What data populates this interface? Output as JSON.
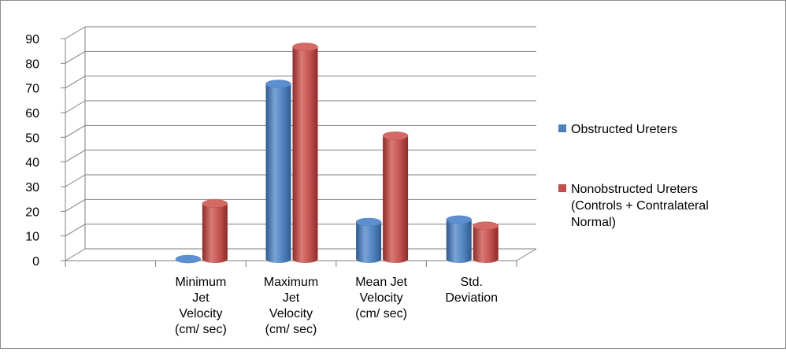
{
  "chart_data": {
    "type": "bar",
    "style": "3d-cylinder",
    "categories": [
      [
        "Minimum",
        "Jet",
        "Velocity",
        "(cm/ sec)"
      ],
      [
        "Maximum",
        "Jet",
        "Velocity",
        "(cm/ sec)"
      ],
      [
        "Mean Jet",
        "Velocity",
        "(cm/ sec)"
      ],
      [
        "Std.",
        "Deviation"
      ]
    ],
    "series": [
      {
        "name": "Obstructed Ureters",
        "color": "#4f81bd",
        "values": [
          0,
          71,
          15,
          16
        ]
      },
      {
        "name_lines": [
          "Nonobstructed Ureters",
          "(Controls + Contralateral",
          "Normal)"
        ],
        "color": "#c0504d",
        "values": [
          22.5,
          86,
          50,
          13.5
        ]
      }
    ],
    "y_ticks": [
      "0",
      "10",
      "20",
      "30",
      "40",
      "50",
      "60",
      "70",
      "80",
      "90"
    ],
    "ylim": [
      0,
      90
    ],
    "grid": true,
    "legend_position": "right"
  }
}
